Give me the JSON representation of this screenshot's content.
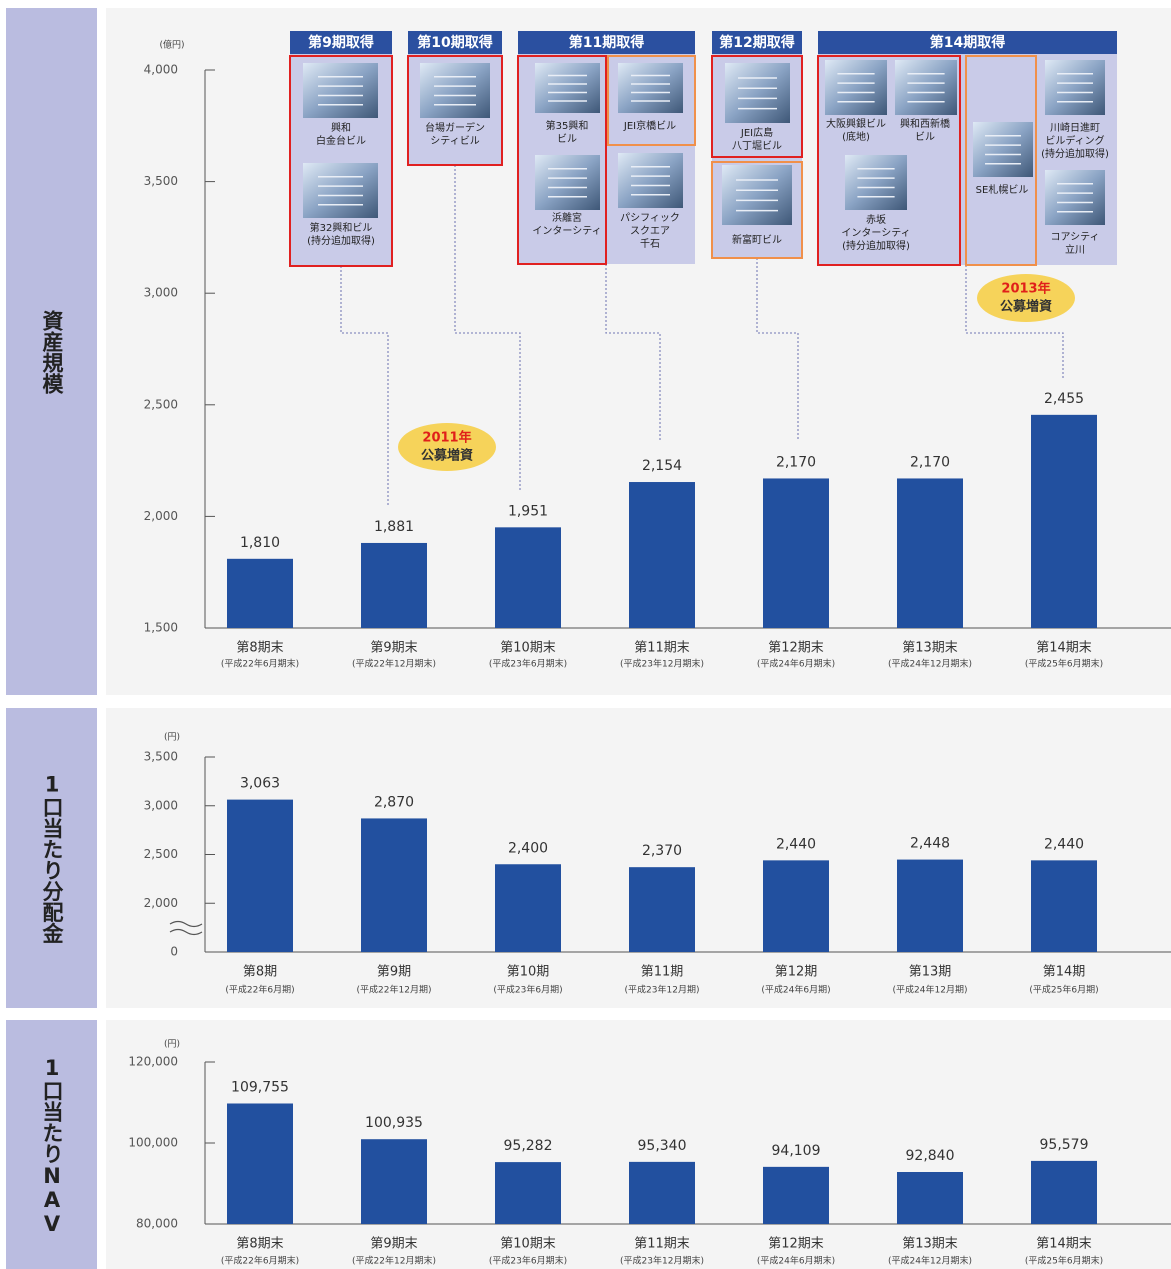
{
  "chart_data": [
    {
      "type": "bar",
      "side_label": "資産規模",
      "unit_label": "(億円)",
      "categories": [
        "第8期末",
        "第9期末",
        "第10期末",
        "第11期末",
        "第12期末",
        "第13期末",
        "第14期末"
      ],
      "subcategories": [
        "(平成22年6月期末)",
        "(平成22年12月期末)",
        "(平成23年6月期末)",
        "(平成23年12月期末)",
        "(平成24年6月期末)",
        "(平成24年12月期末)",
        "(平成25年6月期末)"
      ],
      "values": [
        1810,
        1881,
        1951,
        2154,
        2170,
        2170,
        2455
      ],
      "value_labels": [
        "1,810",
        "1,881",
        "1,951",
        "2,154",
        "2,170",
        "2,170",
        "2,455"
      ],
      "color": "#22509f",
      "ylim": [
        1500,
        4000
      ],
      "yticks": [
        {
          "value": 1500,
          "label": "1,500"
        },
        {
          "value": 2000,
          "label": "2,000"
        },
        {
          "value": 2500,
          "label": "2,500"
        },
        {
          "value": 3000,
          "label": "3,000"
        },
        {
          "value": 3500,
          "label": "3,500"
        },
        {
          "value": 4000,
          "label": "4,000"
        }
      ]
    },
    {
      "type": "bar",
      "side_label": "1口当たり分配金",
      "unit_label": "(円)",
      "categories": [
        "第8期",
        "第9期",
        "第10期",
        "第11期",
        "第12期",
        "第13期",
        "第14期"
      ],
      "subcategories": [
        "(平成22年6月期)",
        "(平成22年12月期)",
        "(平成23年6月期)",
        "(平成23年12月期)",
        "(平成24年6月期)",
        "(平成24年12月期)",
        "(平成25年6月期)"
      ],
      "values": [
        3063,
        2870,
        2400,
        2370,
        2440,
        2448,
        2440
      ],
      "value_labels": [
        "3,063",
        "2,870",
        "2,400",
        "2,370",
        "2,440",
        "2,448",
        "2,440"
      ],
      "color": "#22509f",
      "ylim": [
        0,
        3500
      ],
      "ybreak": [
        0,
        1500
      ],
      "yticks": [
        0,
        {
          "value": 2000,
          "label": "2,000"
        },
        {
          "value": 2500,
          "label": "2,500"
        },
        {
          "value": 3000,
          "label": "3,000"
        },
        {
          "value": 3500,
          "label": "3,500"
        }
      ]
    },
    {
      "type": "bar",
      "side_label": "1口当たりNAV",
      "unit_label": "(円)",
      "categories": [
        "第8期末",
        "第9期末",
        "第10期末",
        "第11期末",
        "第12期末",
        "第13期末",
        "第14期末"
      ],
      "subcategories": [
        "(平成22年6月期末)",
        "(平成22年12月期末)",
        "(平成23年6月期末)",
        "(平成23年12月期末)",
        "(平成24年6月期末)",
        "(平成24年12月期末)",
        "(平成25年6月期末)"
      ],
      "values": [
        109755,
        100935,
        95282,
        95340,
        94109,
        92840,
        95579
      ],
      "value_labels": [
        "109,755",
        "100,935",
        "95,282",
        "95,340",
        "94,109",
        "92,840",
        "95,579"
      ],
      "color": "#22509f",
      "ylim": [
        80000,
        120000
      ],
      "yticks": [
        {
          "value": 80000,
          "label": "80,000"
        },
        {
          "value": 100000,
          "label": "100,000"
        },
        {
          "value": 120000,
          "label": "120,000"
        }
      ]
    }
  ],
  "acquisitions": [
    {
      "title": "第9期取得",
      "buildings": [
        {
          "name": [
            "興和",
            "白金台ビル"
          ]
        },
        {
          "name": [
            "第32興和ビル",
            "(持分追加取得)"
          ]
        }
      ]
    },
    {
      "title": "第10期取得",
      "buildings": [
        {
          "name": [
            "台場ガーデン",
            "シティビル"
          ]
        }
      ]
    },
    {
      "title": "第11期取得",
      "buildings": [
        {
          "name": [
            "第35興和",
            "ビル"
          ]
        },
        {
          "name": [
            "JEI京橋ビル"
          ]
        },
        {
          "name": [
            "浜離宮",
            "インターシティ"
          ]
        },
        {
          "name": [
            "パシフィック",
            "スクエア",
            "千石"
          ]
        }
      ]
    },
    {
      "title": "第12期取得",
      "buildings": [
        {
          "name": [
            "JEI広島",
            "八丁堀ビル"
          ]
        },
        {
          "name": [
            "新富町ビル"
          ]
        }
      ]
    },
    {
      "title": "第14期取得",
      "buildings": [
        {
          "name": [
            "大阪興銀ビル",
            "(底地)"
          ]
        },
        {
          "name": [
            "興和西新橋",
            "ビル"
          ]
        },
        {
          "name": [
            "赤坂",
            "インターシティ",
            "(持分追加取得)"
          ]
        },
        {
          "name": [
            "SE札幌ビル"
          ]
        },
        {
          "name": [
            "川崎日進町",
            "ビルディング",
            "(持分追加取得)"
          ]
        },
        {
          "name": [
            "コアシティ",
            "立川"
          ]
        }
      ]
    }
  ],
  "badges": [
    [
      "2011年",
      "公募増資"
    ],
    [
      "2013年",
      "公募増資"
    ]
  ]
}
